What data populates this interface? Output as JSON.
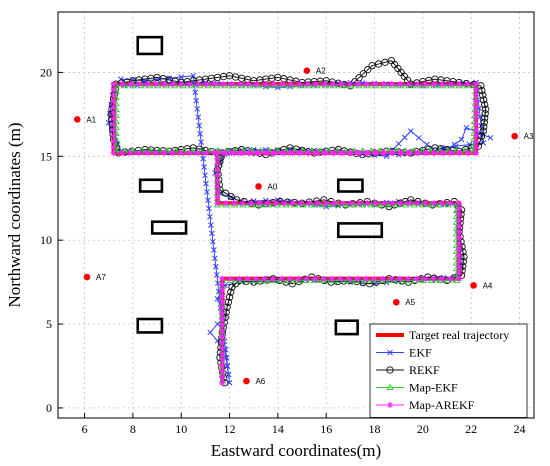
{
  "chart_data": {
    "type": "line",
    "title": "",
    "xlabel": "Eastward coordinates(m)",
    "ylabel": "Northward coordinates (m)",
    "xlim": [
      4.9,
      24.6
    ],
    "ylim": [
      -0.6,
      23.6
    ],
    "xticks": [
      6,
      8,
      10,
      12,
      14,
      16,
      18,
      20,
      22,
      24
    ],
    "yticks": [
      0,
      5,
      10,
      15,
      20
    ],
    "grid": true,
    "legend_position": "bottom-right",
    "series": [
      {
        "name": "Target real trajectory",
        "color": "#ff0000",
        "marker": "none",
        "x": [
          11.7,
          11.7,
          21.5,
          21.5,
          11.5,
          11.5,
          22.2,
          22.2,
          7.2,
          7.2,
          22.2
        ],
        "y": [
          1.5,
          7.7,
          7.7,
          12.2,
          12.2,
          15.2,
          15.2,
          19.3,
          19.3,
          15.2,
          15.2
        ]
      },
      {
        "name": "EKF",
        "color": "#3344ff",
        "marker": "x",
        "x": [
          7.5,
          8.5,
          10.5,
          12.0,
          11.8,
          11.2,
          11.8,
          11.5,
          11.8,
          12.5,
          14.0,
          16.0,
          18.0,
          20.0,
          21.3,
          21.6,
          21.5,
          21.4,
          19.0,
          16.0,
          14.0,
          12.5,
          11.6,
          11.4,
          11.8,
          13.0,
          15.0,
          17.0,
          18.5,
          19.5,
          20.5,
          20.8,
          22.5,
          22.2,
          20.0,
          17.0,
          14.0,
          11.0,
          8.5,
          7.2,
          7.0,
          7.5,
          10.0,
          13.0,
          16.0,
          19.0,
          21.0,
          21.6,
          21.8,
          22.8
        ],
        "y": [
          19.6,
          19.5,
          19.8,
          1.5,
          3.5,
          4.5,
          5.5,
          6.5,
          7.3,
          7.5,
          7.6,
          7.6,
          7.4,
          7.7,
          7.8,
          8.4,
          10.0,
          12.1,
          12.3,
          12.0,
          12.4,
          12.3,
          12.8,
          14.0,
          15.1,
          15.3,
          15.4,
          15.2,
          15.0,
          16.5,
          15.3,
          15.5,
          15.8,
          19.4,
          19.2,
          19.4,
          19.1,
          19.4,
          19.3,
          19.2,
          17.0,
          15.3,
          15.2,
          15.4,
          15.3,
          15.1,
          15.4,
          16.0,
          16.7,
          16.1
        ]
      },
      {
        "name": "REKF",
        "color": "#111111",
        "marker": "o",
        "x": [
          11.8,
          11.6,
          11.7,
          11.9,
          12.1,
          12.4,
          13.0,
          13.8,
          14.6,
          15.4,
          16.2,
          17.0,
          17.8,
          18.6,
          19.4,
          20.2,
          21.0,
          21.6,
          21.7,
          21.5,
          21.6,
          21.3,
          20.4,
          19.5,
          18.6,
          17.7,
          16.8,
          15.9,
          15.0,
          14.1,
          13.2,
          12.3,
          11.6,
          11.5,
          11.7,
          12.5,
          13.5,
          14.5,
          15.5,
          16.5,
          17.5,
          18.5,
          19.5,
          20.5,
          21.5,
          22.3,
          22.5,
          22.6,
          22.4,
          21.5,
          20.5,
          19.5,
          18.7,
          17.9,
          17.0,
          16.0,
          15.0,
          14.0,
          13.0,
          12.0,
          11.0,
          10.0,
          9.0,
          8.0,
          7.3,
          7.1,
          7.2,
          7.4,
          8.5,
          9.5,
          10.5,
          11.5
        ],
        "y": [
          1.5,
          3.0,
          4.5,
          6.0,
          7.2,
          7.6,
          7.5,
          7.7,
          7.4,
          7.8,
          7.5,
          7.6,
          7.4,
          7.7,
          7.5,
          7.8,
          7.6,
          7.9,
          9.0,
          10.5,
          11.8,
          12.3,
          12.1,
          12.4,
          12.0,
          12.3,
          12.1,
          12.4,
          12.2,
          12.3,
          12.1,
          12.4,
          13.0,
          14.2,
          15.2,
          15.4,
          15.1,
          15.5,
          15.2,
          15.4,
          15.1,
          15.3,
          15.2,
          15.5,
          15.3,
          15.6,
          16.5,
          17.8,
          19.2,
          19.4,
          19.6,
          19.3,
          20.7,
          20.4,
          19.2,
          19.5,
          19.4,
          19.7,
          19.5,
          19.8,
          19.6,
          19.4,
          19.7,
          19.5,
          19.3,
          17.5,
          16.0,
          15.2,
          15.4,
          15.3,
          15.5,
          15.2
        ]
      },
      {
        "name": "Map-EKF",
        "color": "#33cc33",
        "marker": "^",
        "x": [
          11.7,
          11.7,
          21.4,
          21.4,
          11.5,
          11.5,
          22.1,
          22.2,
          7.3,
          7.3,
          22.1
        ],
        "y": [
          1.6,
          7.6,
          7.6,
          12.1,
          12.1,
          15.3,
          15.3,
          19.2,
          19.2,
          15.3,
          15.3
        ]
      },
      {
        "name": "Map-AREKF",
        "color": "#ff22ff",
        "marker": "*",
        "x": [
          11.7,
          11.7,
          21.5,
          21.5,
          11.5,
          11.5,
          22.2,
          22.2,
          7.2,
          7.2,
          22.2
        ],
        "y": [
          1.5,
          7.7,
          7.7,
          12.2,
          12.2,
          15.2,
          15.2,
          19.3,
          19.3,
          15.2,
          15.2
        ]
      }
    ],
    "anchors": [
      {
        "label": "A0",
        "x": 13.2,
        "y": 13.2
      },
      {
        "label": "A1",
        "x": 5.7,
        "y": 17.2
      },
      {
        "label": "A2",
        "x": 15.2,
        "y": 20.1
      },
      {
        "label": "A3",
        "x": 23.8,
        "y": 16.2
      },
      {
        "label": "A4",
        "x": 22.1,
        "y": 7.3
      },
      {
        "label": "A5",
        "x": 18.9,
        "y": 6.3
      },
      {
        "label": "A6",
        "x": 12.7,
        "y": 1.6
      },
      {
        "label": "A7",
        "x": 6.1,
        "y": 7.8
      }
    ],
    "obstacles": [
      {
        "x": [
          8.2,
          9.2
        ],
        "y": [
          21.1,
          22.1
        ]
      },
      {
        "x": [
          8.3,
          9.2
        ],
        "y": [
          12.9,
          13.6
        ]
      },
      {
        "x": [
          16.5,
          17.5
        ],
        "y": [
          12.9,
          13.6
        ]
      },
      {
        "x": [
          8.8,
          10.2
        ],
        "y": [
          10.4,
          11.1
        ]
      },
      {
        "x": [
          16.5,
          18.3
        ],
        "y": [
          10.2,
          11.0
        ]
      },
      {
        "x": [
          8.2,
          9.2
        ],
        "y": [
          4.5,
          5.3
        ]
      },
      {
        "x": [
          16.4,
          17.3
        ],
        "y": [
          4.4,
          5.2
        ]
      }
    ]
  }
}
